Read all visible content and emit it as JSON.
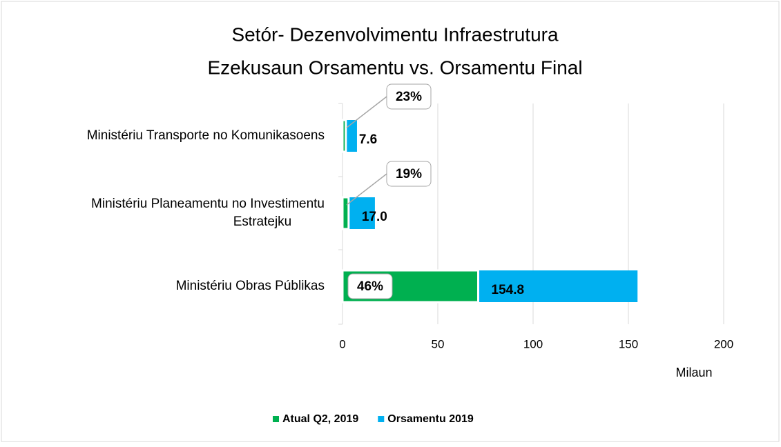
{
  "chart_data": {
    "type": "bar",
    "orientation": "horizontal",
    "overlap": true,
    "title": [
      "Setór- Dezenvolvimentu Infraestrutura",
      "Ezekusaun Orsamentu vs. Orsamentu Final"
    ],
    "categories": [
      "Ministériu Transporte no Komunikasoens",
      "Ministériu Planeamentu no Investimentu Estratejku",
      "Ministériu Obras Públikas"
    ],
    "series": [
      {
        "name": "Atual Q2, 2019",
        "color": "#00b050",
        "values": [
          1.75,
          3.2,
          71.2
        ],
        "value_labels": [
          "23%",
          "19%",
          "46%"
        ]
      },
      {
        "name": "Orsamentu 2019",
        "color": "#00b0f0",
        "values": [
          7.6,
          17.0,
          154.8
        ],
        "value_labels": [
          "7.6",
          "17.0",
          "154.8"
        ]
      }
    ],
    "xlim": [
      0,
      200
    ],
    "xticks": [
      0,
      50,
      100,
      150,
      200
    ],
    "xlabel": "Milaun",
    "grid": true,
    "legend": "bottom"
  }
}
